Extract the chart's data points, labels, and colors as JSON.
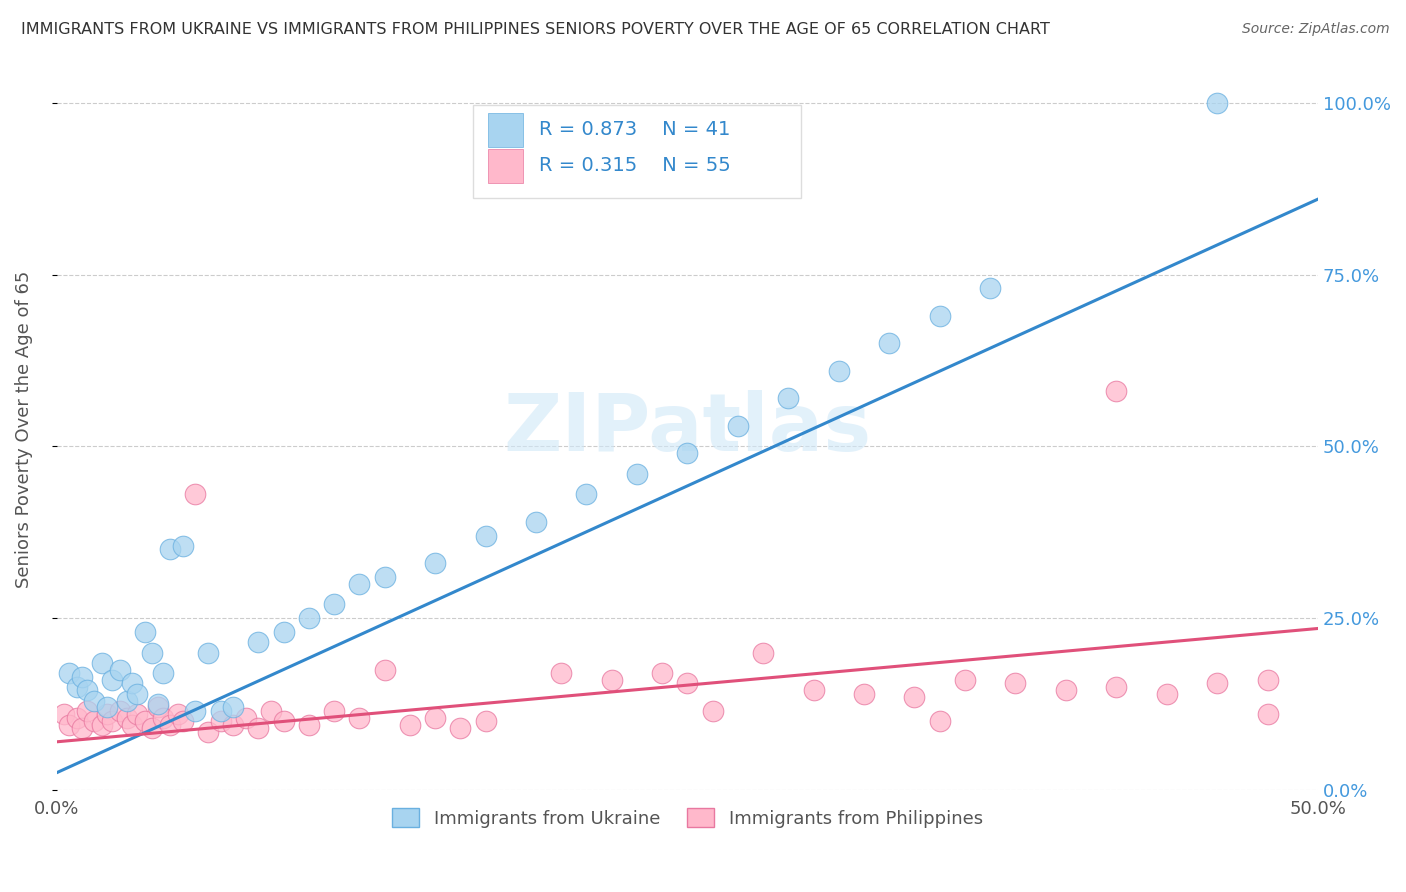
{
  "title": "IMMIGRANTS FROM UKRAINE VS IMMIGRANTS FROM PHILIPPINES SENIORS POVERTY OVER THE AGE OF 65 CORRELATION CHART",
  "source": "Source: ZipAtlas.com",
  "ylabel": "Seniors Poverty Over the Age of 65",
  "ytick_labels": [
    "0.0%",
    "25.0%",
    "50.0%",
    "75.0%",
    "100.0%"
  ],
  "ytick_values": [
    0.0,
    0.25,
    0.5,
    0.75,
    1.0
  ],
  "xlim": [
    0.0,
    0.5
  ],
  "ylim": [
    0.0,
    1.05
  ],
  "ukraine_color": "#a8d4f0",
  "ukraine_edge": "#6ab0e0",
  "philippines_color": "#ffb8cb",
  "philippines_edge": "#e878a0",
  "ukraine_R": 0.873,
  "ukraine_N": 41,
  "philippines_R": 0.315,
  "philippines_N": 55,
  "ukraine_line_color": "#3388cc",
  "philippines_line_color": "#e0507a",
  "watermark": "ZIPatlas",
  "legend_ukraine": "Immigrants from Ukraine",
  "legend_philippines": "Immigrants from Philippines",
  "ukraine_scatter_x": [
    0.005,
    0.008,
    0.01,
    0.012,
    0.015,
    0.018,
    0.02,
    0.022,
    0.025,
    0.028,
    0.03,
    0.032,
    0.035,
    0.038,
    0.04,
    0.042,
    0.045,
    0.05,
    0.055,
    0.06,
    0.065,
    0.07,
    0.08,
    0.09,
    0.1,
    0.11,
    0.12,
    0.13,
    0.15,
    0.17,
    0.19,
    0.21,
    0.23,
    0.25,
    0.27,
    0.29,
    0.31,
    0.33,
    0.35,
    0.37,
    0.46
  ],
  "ukraine_scatter_y": [
    0.17,
    0.15,
    0.165,
    0.145,
    0.13,
    0.185,
    0.12,
    0.16,
    0.175,
    0.13,
    0.155,
    0.14,
    0.23,
    0.2,
    0.125,
    0.17,
    0.35,
    0.355,
    0.115,
    0.2,
    0.115,
    0.12,
    0.215,
    0.23,
    0.25,
    0.27,
    0.3,
    0.31,
    0.33,
    0.37,
    0.39,
    0.43,
    0.46,
    0.49,
    0.53,
    0.57,
    0.61,
    0.65,
    0.69,
    0.73,
    1.0
  ],
  "philippines_scatter_x": [
    0.003,
    0.005,
    0.008,
    0.01,
    0.012,
    0.015,
    0.018,
    0.02,
    0.022,
    0.025,
    0.028,
    0.03,
    0.032,
    0.035,
    0.038,
    0.04,
    0.042,
    0.045,
    0.048,
    0.05,
    0.055,
    0.06,
    0.065,
    0.07,
    0.075,
    0.08,
    0.085,
    0.09,
    0.1,
    0.11,
    0.12,
    0.13,
    0.14,
    0.15,
    0.16,
    0.17,
    0.2,
    0.22,
    0.25,
    0.28,
    0.3,
    0.32,
    0.34,
    0.36,
    0.38,
    0.4,
    0.42,
    0.44,
    0.46,
    0.48,
    0.24,
    0.26,
    0.35,
    0.42,
    0.48
  ],
  "philippines_scatter_y": [
    0.11,
    0.095,
    0.105,
    0.09,
    0.115,
    0.1,
    0.095,
    0.11,
    0.1,
    0.115,
    0.105,
    0.095,
    0.11,
    0.1,
    0.09,
    0.12,
    0.105,
    0.095,
    0.11,
    0.1,
    0.43,
    0.085,
    0.1,
    0.095,
    0.105,
    0.09,
    0.115,
    0.1,
    0.095,
    0.115,
    0.105,
    0.175,
    0.095,
    0.105,
    0.09,
    0.1,
    0.17,
    0.16,
    0.155,
    0.2,
    0.145,
    0.14,
    0.135,
    0.16,
    0.155,
    0.145,
    0.15,
    0.14,
    0.155,
    0.16,
    0.17,
    0.115,
    0.1,
    0.58,
    0.11
  ],
  "ukraine_line_x0": 0.0,
  "ukraine_line_y0": 0.025,
  "ukraine_line_x1": 0.5,
  "ukraine_line_y1": 0.86,
  "philippines_line_x0": 0.0,
  "philippines_line_y0": 0.07,
  "philippines_line_x1": 0.5,
  "philippines_line_y1": 0.235
}
